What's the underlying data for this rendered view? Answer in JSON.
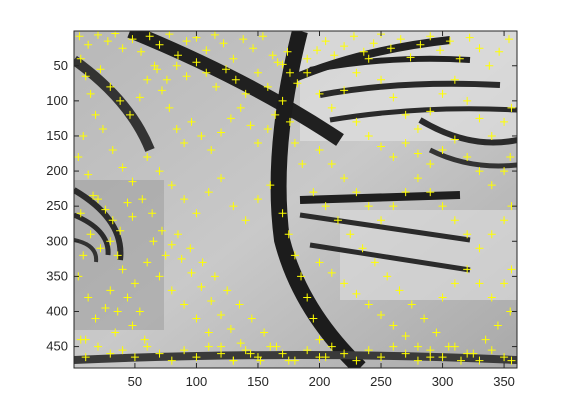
{
  "chart_data": {
    "type": "scatter",
    "title": "",
    "xlabel": "",
    "ylabel": "",
    "xlim": [
      0.5,
      360.5
    ],
    "ylim": [
      0.5,
      480.5
    ],
    "y_direction": "reversed",
    "grid": false,
    "legend": "none",
    "x_ticks": [
      50,
      100,
      150,
      200,
      250,
      300,
      350
    ],
    "y_ticks": [
      50,
      100,
      150,
      200,
      250,
      300,
      350,
      400,
      450
    ],
    "x_tick_labels": [
      "50",
      "100",
      "150",
      "200",
      "250",
      "300",
      "350"
    ],
    "y_tick_labels": [
      "50",
      "100",
      "150",
      "200",
      "250",
      "300",
      "350",
      "400",
      "450"
    ],
    "marker": "+",
    "marker_color": "#ffff00",
    "background": "grayscale image",
    "series": [
      {
        "points": [
          [
            5,
            8
          ],
          [
            12,
            20
          ],
          [
            20,
            6
          ],
          [
            28,
            15
          ],
          [
            34,
            4
          ],
          [
            40,
            25
          ],
          [
            48,
            12
          ],
          [
            55,
            30
          ],
          [
            62,
            8
          ],
          [
            70,
            20
          ],
          [
            78,
            5
          ],
          [
            85,
            35
          ],
          [
            92,
            15
          ],
          [
            100,
            10
          ],
          [
            108,
            28
          ],
          [
            115,
            6
          ],
          [
            122,
            18
          ],
          [
            130,
            40
          ],
          [
            138,
            12
          ],
          [
            146,
            25
          ],
          [
            154,
            8
          ],
          [
            162,
            35
          ],
          [
            170,
            48
          ],
          [
            176,
            60
          ],
          [
            182,
            75
          ],
          [
            190,
            40
          ],
          [
            198,
            28
          ],
          [
            205,
            15
          ],
          [
            212,
            35
          ],
          [
            220,
            22
          ],
          [
            228,
            8
          ],
          [
            236,
            30
          ],
          [
            244,
            18
          ],
          [
            250,
            5
          ],
          [
            258,
            25
          ],
          [
            266,
            12
          ],
          [
            274,
            38
          ],
          [
            282,
            20
          ],
          [
            290,
            8
          ],
          [
            298,
            28
          ],
          [
            306,
            15
          ],
          [
            314,
            40
          ],
          [
            322,
            10
          ],
          [
            330,
            25
          ],
          [
            338,
            50
          ],
          [
            346,
            30
          ],
          [
            354,
            12
          ],
          [
            6,
            40
          ],
          [
            10,
            65
          ],
          [
            14,
            90
          ],
          [
            18,
            120
          ],
          [
            8,
            150
          ],
          [
            4,
            180
          ],
          [
            12,
            205
          ],
          [
            16,
            235
          ],
          [
            6,
            260
          ],
          [
            14,
            290
          ],
          [
            8,
            320
          ],
          [
            4,
            350
          ],
          [
            12,
            380
          ],
          [
            18,
            410
          ],
          [
            6,
            440
          ],
          [
            10,
            465
          ],
          [
            22,
            55
          ],
          [
            30,
            80
          ],
          [
            38,
            100
          ],
          [
            46,
            120
          ],
          [
            54,
            95
          ],
          [
            60,
            70
          ],
          [
            66,
            50
          ],
          [
            72,
            85
          ],
          [
            78,
            110
          ],
          [
            84,
            140
          ],
          [
            90,
            160
          ],
          [
            96,
            130
          ],
          [
            104,
            150
          ],
          [
            112,
            170
          ],
          [
            120,
            145
          ],
          [
            128,
            125
          ],
          [
            136,
            110
          ],
          [
            144,
            135
          ],
          [
            150,
            160
          ],
          [
            158,
            140
          ],
          [
            164,
            120
          ],
          [
            170,
            100
          ],
          [
            176,
            130
          ],
          [
            180,
            160
          ],
          [
            186,
            190
          ],
          [
            24,
            140
          ],
          [
            32,
            170
          ],
          [
            40,
            195
          ],
          [
            48,
            215
          ],
          [
            56,
            240
          ],
          [
            64,
            260
          ],
          [
            72,
            285
          ],
          [
            80,
            305
          ],
          [
            88,
            325
          ],
          [
            96,
            345
          ],
          [
            104,
            365
          ],
          [
            112,
            385
          ],
          [
            120,
            405
          ],
          [
            128,
            425
          ],
          [
            136,
            445
          ],
          [
            144,
            460
          ],
          [
            152,
            470
          ],
          [
            20,
            240
          ],
          [
            26,
            255
          ],
          [
            32,
            270
          ],
          [
            38,
            285
          ],
          [
            30,
            300
          ],
          [
            22,
            310
          ],
          [
            36,
            320
          ],
          [
            44,
            245
          ],
          [
            48,
            265
          ],
          [
            60,
            180
          ],
          [
            70,
            200
          ],
          [
            80,
            220
          ],
          [
            90,
            240
          ],
          [
            100,
            260
          ],
          [
            110,
            230
          ],
          [
            120,
            210
          ],
          [
            130,
            250
          ],
          [
            140,
            270
          ],
          [
            150,
            240
          ],
          [
            160,
            220
          ],
          [
            170,
            260
          ],
          [
            175,
            290
          ],
          [
            180,
            320
          ],
          [
            185,
            350
          ],
          [
            190,
            380
          ],
          [
            195,
            410
          ],
          [
            200,
            440
          ],
          [
            205,
            465
          ],
          [
            60,
            330
          ],
          [
            70,
            350
          ],
          [
            80,
            370
          ],
          [
            90,
            390
          ],
          [
            100,
            410
          ],
          [
            110,
            430
          ],
          [
            120,
            450
          ],
          [
            130,
            470
          ],
          [
            65,
            300
          ],
          [
            75,
            320
          ],
          [
            85,
            290
          ],
          [
            95,
            310
          ],
          [
            105,
            330
          ],
          [
            115,
            350
          ],
          [
            125,
            370
          ],
          [
            135,
            390
          ],
          [
            145,
            410
          ],
          [
            155,
            430
          ],
          [
            165,
            450
          ],
          [
            175,
            470
          ],
          [
            190,
            60
          ],
          [
            200,
            90
          ],
          [
            210,
            110
          ],
          [
            220,
            85
          ],
          [
            230,
            60
          ],
          [
            240,
            40
          ],
          [
            250,
            70
          ],
          [
            260,
            95
          ],
          [
            270,
            120
          ],
          [
            280,
            140
          ],
          [
            290,
            115
          ],
          [
            300,
            90
          ],
          [
            310,
            70
          ],
          [
            320,
            100
          ],
          [
            330,
            125
          ],
          [
            340,
            150
          ],
          [
            350,
            130
          ],
          [
            356,
            110
          ],
          [
            200,
            170
          ],
          [
            210,
            190
          ],
          [
            220,
            210
          ],
          [
            230,
            230
          ],
          [
            240,
            250
          ],
          [
            250,
            270
          ],
          [
            260,
            250
          ],
          [
            270,
            230
          ],
          [
            280,
            210
          ],
          [
            290,
            230
          ],
          [
            300,
            250
          ],
          [
            310,
            270
          ],
          [
            320,
            290
          ],
          [
            330,
            310
          ],
          [
            340,
            290
          ],
          [
            350,
            270
          ],
          [
            356,
            250
          ],
          [
            195,
            230
          ],
          [
            205,
            250
          ],
          [
            215,
            270
          ],
          [
            225,
            290
          ],
          [
            235,
            310
          ],
          [
            245,
            330
          ],
          [
            255,
            350
          ],
          [
            265,
            370
          ],
          [
            275,
            390
          ],
          [
            285,
            410
          ],
          [
            295,
            430
          ],
          [
            305,
            450
          ],
          [
            315,
            470
          ],
          [
            325,
            460
          ],
          [
            335,
            440
          ],
          [
            345,
            420
          ],
          [
            355,
            400
          ],
          [
            200,
            330
          ],
          [
            210,
            345
          ],
          [
            220,
            360
          ],
          [
            230,
            375
          ],
          [
            240,
            390
          ],
          [
            250,
            405
          ],
          [
            260,
            420
          ],
          [
            270,
            435
          ],
          [
            280,
            450
          ],
          [
            290,
            465
          ],
          [
            300,
            380
          ],
          [
            310,
            360
          ],
          [
            320,
            340
          ],
          [
            330,
            360
          ],
          [
            340,
            380
          ],
          [
            350,
            360
          ],
          [
            356,
            340
          ],
          [
            10,
            440
          ],
          [
            20,
            450
          ],
          [
            30,
            460
          ],
          [
            40,
            455
          ],
          [
            50,
            465
          ],
          [
            60,
            450
          ],
          [
            70,
            460
          ],
          [
            80,
            470
          ],
          [
            90,
            455
          ],
          [
            100,
            465
          ],
          [
            110,
            450
          ],
          [
            120,
            460
          ],
          [
            130,
            470
          ],
          [
            140,
            455
          ],
          [
            150,
            465
          ],
          [
            160,
            450
          ],
          [
            170,
            460
          ],
          [
            180,
            470
          ],
          [
            190,
            455
          ],
          [
            200,
            465
          ],
          [
            210,
            450
          ],
          [
            220,
            460
          ],
          [
            230,
            470
          ],
          [
            240,
            455
          ],
          [
            250,
            465
          ],
          [
            260,
            450
          ],
          [
            270,
            460
          ],
          [
            280,
            470
          ],
          [
            290,
            455
          ],
          [
            300,
            465
          ],
          [
            310,
            450
          ],
          [
            320,
            460
          ],
          [
            330,
            470
          ],
          [
            340,
            455
          ],
          [
            350,
            465
          ],
          [
            356,
            470
          ],
          [
            230,
            130
          ],
          [
            240,
            150
          ],
          [
            250,
            165
          ],
          [
            260,
            180
          ],
          [
            270,
            160
          ],
          [
            280,
            175
          ],
          [
            290,
            190
          ],
          [
            300,
            170
          ],
          [
            310,
            155
          ],
          [
            320,
            180
          ],
          [
            330,
            200
          ],
          [
            340,
            220
          ],
          [
            350,
            200
          ],
          [
            355,
            180
          ],
          [
            150,
            60
          ],
          [
            158,
            80
          ],
          [
            166,
            45
          ],
          [
            174,
            30
          ],
          [
            140,
            90
          ],
          [
            132,
            70
          ],
          [
            124,
            55
          ],
          [
            116,
            80
          ],
          [
            108,
            60
          ],
          [
            100,
            45
          ],
          [
            92,
            65
          ],
          [
            84,
            50
          ],
          [
            76,
            70
          ],
          [
            68,
            55
          ],
          [
            40,
            340
          ],
          [
            50,
            360
          ],
          [
            44,
            380
          ],
          [
            54,
            400
          ],
          [
            48,
            420
          ],
          [
            58,
            440
          ],
          [
            36,
            400
          ],
          [
            30,
            370
          ],
          [
            26,
            395
          ],
          [
            34,
            430
          ]
        ]
      }
    ]
  }
}
